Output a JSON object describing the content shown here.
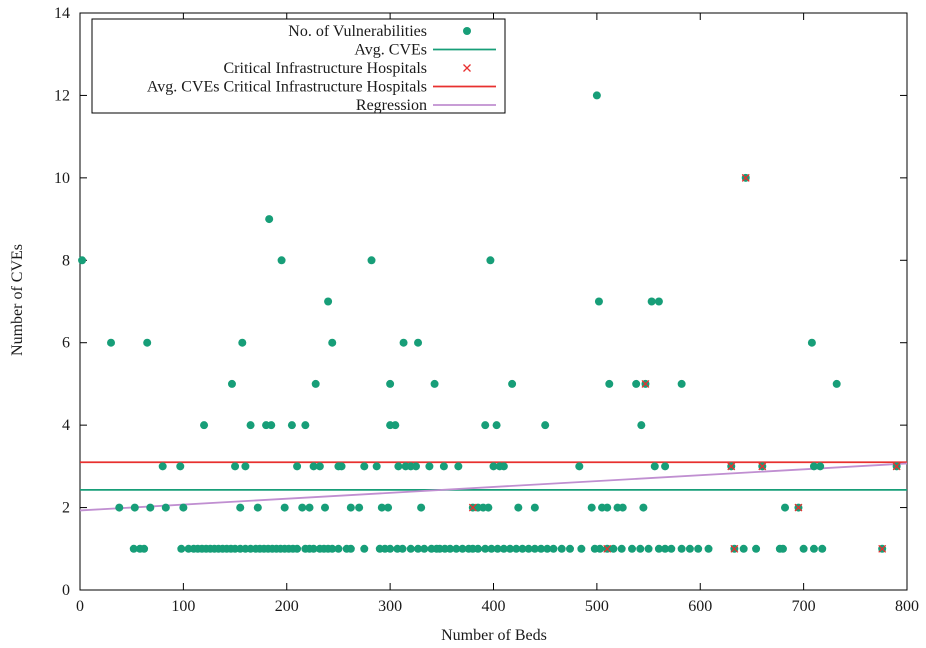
{
  "chart_data": {
    "type": "scatter",
    "xlabel": "Number of Beds",
    "ylabel": "Number of CVEs",
    "xlim": [
      0,
      800
    ],
    "ylim": [
      0,
      14
    ],
    "xticks": [
      0,
      100,
      200,
      300,
      400,
      500,
      600,
      700,
      800
    ],
    "yticks": [
      0,
      2,
      4,
      6,
      8,
      10,
      12,
      14
    ],
    "grid": false,
    "legend_position": "top-left",
    "legend": [
      {
        "label": "No. of Vulnerabilities",
        "kind": "point",
        "color": "#179e78"
      },
      {
        "label": "Avg. CVEs",
        "kind": "line",
        "color": "#179e78"
      },
      {
        "label": "Critical Infrastructure Hospitals",
        "kind": "cross",
        "color": "#e8302f"
      },
      {
        "label": "Avg. CVEs Critical Infrastructure Hospitals",
        "kind": "line",
        "color": "#e8302f"
      },
      {
        "label": "Regression",
        "kind": "line",
        "color": "#c08fd1"
      }
    ],
    "series": [
      {
        "name": "No. of Vulnerabilities",
        "color": "#179e78",
        "points": [
          [
            2,
            8
          ],
          [
            30,
            6
          ],
          [
            38,
            2
          ],
          [
            53,
            2
          ],
          [
            65,
            6
          ],
          [
            68,
            2
          ],
          [
            80,
            3
          ],
          [
            83,
            2
          ],
          [
            97,
            3
          ],
          [
            100,
            2
          ],
          [
            120,
            4
          ],
          [
            147,
            5
          ],
          [
            150,
            3
          ],
          [
            155,
            2
          ],
          [
            157,
            6
          ],
          [
            160,
            3
          ],
          [
            165,
            4
          ],
          [
            172,
            2
          ],
          [
            180,
            4
          ],
          [
            183,
            9
          ],
          [
            185,
            4
          ],
          [
            195,
            8
          ],
          [
            198,
            2
          ],
          [
            205,
            4
          ],
          [
            210,
            3
          ],
          [
            215,
            2
          ],
          [
            218,
            4
          ],
          [
            222,
            2
          ],
          [
            226,
            3
          ],
          [
            228,
            5
          ],
          [
            232,
            3
          ],
          [
            237,
            2
          ],
          [
            240,
            7
          ],
          [
            244,
            6
          ],
          [
            250,
            3
          ],
          [
            253,
            3
          ],
          [
            262,
            2
          ],
          [
            270,
            2
          ],
          [
            275,
            3
          ],
          [
            282,
            8
          ],
          [
            287,
            3
          ],
          [
            292,
            2
          ],
          [
            298,
            2
          ],
          [
            300,
            5
          ],
          [
            300,
            4
          ],
          [
            305,
            4
          ],
          [
            308,
            3
          ],
          [
            313,
            6
          ],
          [
            315,
            3
          ],
          [
            320,
            3
          ],
          [
            325,
            3
          ],
          [
            327,
            6
          ],
          [
            330,
            2
          ],
          [
            338,
            3
          ],
          [
            343,
            5
          ],
          [
            352,
            3
          ],
          [
            366,
            3
          ],
          [
            380,
            2
          ],
          [
            385,
            2
          ],
          [
            390,
            2
          ],
          [
            392,
            4
          ],
          [
            395,
            2
          ],
          [
            397,
            8
          ],
          [
            400,
            3
          ],
          [
            403,
            4
          ],
          [
            406,
            3
          ],
          [
            410,
            3
          ],
          [
            418,
            5
          ],
          [
            424,
            2
          ],
          [
            440,
            2
          ],
          [
            450,
            4
          ],
          [
            483,
            3
          ],
          [
            495,
            2
          ],
          [
            500,
            12
          ],
          [
            502,
            7
          ],
          [
            505,
            2
          ],
          [
            510,
            2
          ],
          [
            512,
            5
          ],
          [
            520,
            2
          ],
          [
            525,
            2
          ],
          [
            538,
            5
          ],
          [
            543,
            4
          ],
          [
            545,
            2
          ],
          [
            547,
            5
          ],
          [
            553,
            7
          ],
          [
            556,
            3
          ],
          [
            560,
            7
          ],
          [
            566,
            3
          ],
          [
            582,
            5
          ],
          [
            630,
            3
          ],
          [
            644,
            10
          ],
          [
            660,
            3
          ],
          [
            682,
            2
          ],
          [
            695,
            2
          ],
          [
            708,
            6
          ],
          [
            710,
            3
          ],
          [
            716,
            3
          ],
          [
            732,
            5
          ],
          [
            790,
            3
          ],
          [
            52,
            1
          ],
          [
            58,
            1
          ],
          [
            62,
            1
          ],
          [
            98,
            1
          ],
          [
            105,
            1
          ],
          [
            110,
            1
          ],
          [
            114,
            1
          ],
          [
            118,
            1
          ],
          [
            122,
            1
          ],
          [
            126,
            1
          ],
          [
            130,
            1
          ],
          [
            134,
            1
          ],
          [
            138,
            1
          ],
          [
            142,
            1
          ],
          [
            146,
            1
          ],
          [
            150,
            1
          ],
          [
            155,
            1
          ],
          [
            160,
            1
          ],
          [
            165,
            1
          ],
          [
            170,
            1
          ],
          [
            174,
            1
          ],
          [
            178,
            1
          ],
          [
            182,
            1
          ],
          [
            186,
            1
          ],
          [
            190,
            1
          ],
          [
            194,
            1
          ],
          [
            198,
            1
          ],
          [
            202,
            1
          ],
          [
            206,
            1
          ],
          [
            210,
            1
          ],
          [
            218,
            1
          ],
          [
            222,
            1
          ],
          [
            226,
            1
          ],
          [
            232,
            1
          ],
          [
            236,
            1
          ],
          [
            240,
            1
          ],
          [
            244,
            1
          ],
          [
            250,
            1
          ],
          [
            258,
            1
          ],
          [
            262,
            1
          ],
          [
            275,
            1
          ],
          [
            290,
            1
          ],
          [
            295,
            1
          ],
          [
            300,
            1
          ],
          [
            307,
            1
          ],
          [
            312,
            1
          ],
          [
            320,
            1
          ],
          [
            327,
            1
          ],
          [
            333,
            1
          ],
          [
            340,
            1
          ],
          [
            345,
            1
          ],
          [
            348,
            1
          ],
          [
            353,
            1
          ],
          [
            358,
            1
          ],
          [
            364,
            1
          ],
          [
            370,
            1
          ],
          [
            376,
            1
          ],
          [
            380,
            1
          ],
          [
            385,
            1
          ],
          [
            392,
            1
          ],
          [
            398,
            1
          ],
          [
            404,
            1
          ],
          [
            410,
            1
          ],
          [
            416,
            1
          ],
          [
            422,
            1
          ],
          [
            428,
            1
          ],
          [
            434,
            1
          ],
          [
            440,
            1
          ],
          [
            446,
            1
          ],
          [
            452,
            1
          ],
          [
            458,
            1
          ],
          [
            466,
            1
          ],
          [
            474,
            1
          ],
          [
            485,
            1
          ],
          [
            498,
            1
          ],
          [
            503,
            1
          ],
          [
            510,
            1
          ],
          [
            516,
            1
          ],
          [
            524,
            1
          ],
          [
            534,
            1
          ],
          [
            542,
            1
          ],
          [
            550,
            1
          ],
          [
            560,
            1
          ],
          [
            566,
            1
          ],
          [
            572,
            1
          ],
          [
            582,
            1
          ],
          [
            590,
            1
          ],
          [
            598,
            1
          ],
          [
            608,
            1
          ],
          [
            633,
            1
          ],
          [
            642,
            1
          ],
          [
            654,
            1
          ],
          [
            677,
            1
          ],
          [
            680,
            1
          ],
          [
            700,
            1
          ],
          [
            710,
            1
          ],
          [
            718,
            1
          ],
          [
            776,
            1
          ]
        ]
      },
      {
        "name": "Critical Infrastructure Hospitals",
        "color": "#e8302f",
        "points": [
          [
            380,
            2
          ],
          [
            510,
            1
          ],
          [
            547,
            5
          ],
          [
            630,
            3
          ],
          [
            633,
            1
          ],
          [
            644,
            10
          ],
          [
            660,
            3
          ],
          [
            695,
            2
          ],
          [
            776,
            1
          ],
          [
            790,
            3
          ]
        ]
      }
    ],
    "lines": [
      {
        "name": "Avg. CVEs",
        "color": "#179e78",
        "y": 2.43
      },
      {
        "name": "Avg. CVEs Critical Infrastructure Hospitals",
        "color": "#e8302f",
        "y": 3.1
      },
      {
        "name": "Regression",
        "color": "#c08fd1",
        "from": [
          0,
          1.93
        ],
        "to": [
          800,
          3.07
        ]
      }
    ]
  }
}
